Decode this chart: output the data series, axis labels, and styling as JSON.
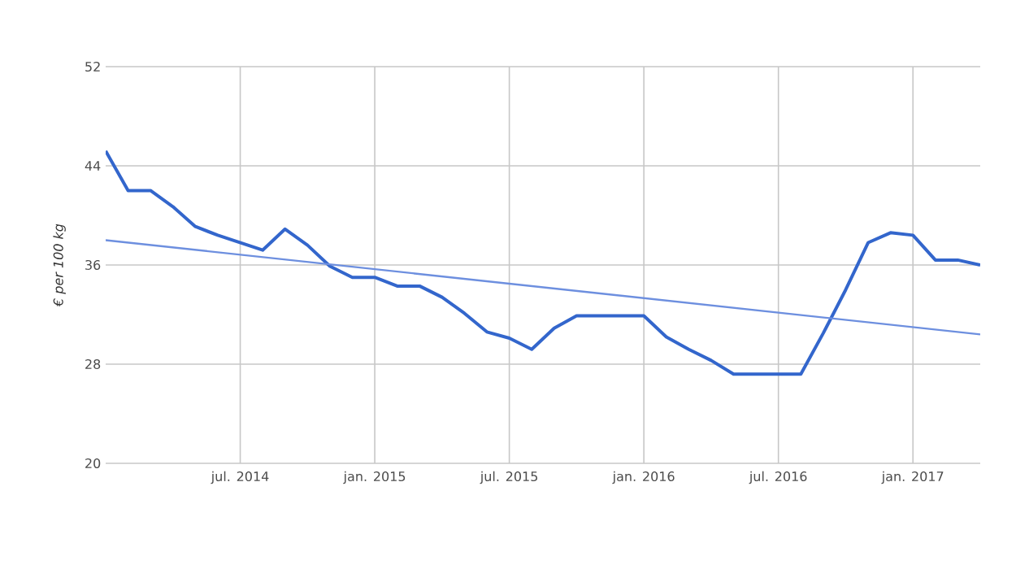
{
  "chart_data": {
    "type": "line",
    "ylabel": "€ per 100 kg",
    "x": [
      "2014-01",
      "2014-02",
      "2014-03",
      "2014-04",
      "2014-05",
      "2014-06",
      "2014-07",
      "2014-08",
      "2014-09",
      "2014-10",
      "2014-11",
      "2014-12",
      "2015-01",
      "2015-02",
      "2015-03",
      "2015-04",
      "2015-05",
      "2015-06",
      "2015-07",
      "2015-08",
      "2015-09",
      "2015-10",
      "2015-11",
      "2015-12",
      "2016-01",
      "2016-02",
      "2016-03",
      "2016-04",
      "2016-05",
      "2016-06",
      "2016-07",
      "2016-08",
      "2016-09",
      "2016-10",
      "2016-11",
      "2016-12",
      "2017-01",
      "2017-02",
      "2017-03",
      "2017-04"
    ],
    "series": [
      {
        "color": "#3366cc",
        "values": [
          45.2,
          42.0,
          42.0,
          40.7,
          39.1,
          38.4,
          37.8,
          37.2,
          38.9,
          37.6,
          35.9,
          35.0,
          35.0,
          34.3,
          34.3,
          33.4,
          32.1,
          30.6,
          30.1,
          29.2,
          30.9,
          31.9,
          31.9,
          31.9,
          31.9,
          30.2,
          29.2,
          28.3,
          27.2,
          27.2,
          27.2,
          27.2,
          30.5,
          34.0,
          37.8,
          38.6,
          38.4,
          36.4,
          36.4,
          36.0
        ]
      },
      {
        "type": "line",
        "color": "#6d8fdf",
        "x": [
          "2014-01",
          "2017-04"
        ],
        "values": [
          38.0,
          30.4
        ]
      }
    ],
    "xlim": [
      "2014-01",
      "2017-04"
    ],
    "xticks": [
      {
        "value": "2014-07",
        "label": "jul. 2014"
      },
      {
        "value": "2015-01",
        "label": "jan. 2015"
      },
      {
        "value": "2015-07",
        "label": "jul. 2015"
      },
      {
        "value": "2016-01",
        "label": "jan. 2016"
      },
      {
        "value": "2016-07",
        "label": "jul. 2016"
      },
      {
        "value": "2017-01",
        "label": "jan. 2017"
      }
    ],
    "ylim": [
      20,
      52
    ],
    "yticks": [
      20,
      28,
      36,
      44,
      52
    ],
    "grid": true,
    "legend": false,
    "marker": "none",
    "line_style": "solid"
  }
}
